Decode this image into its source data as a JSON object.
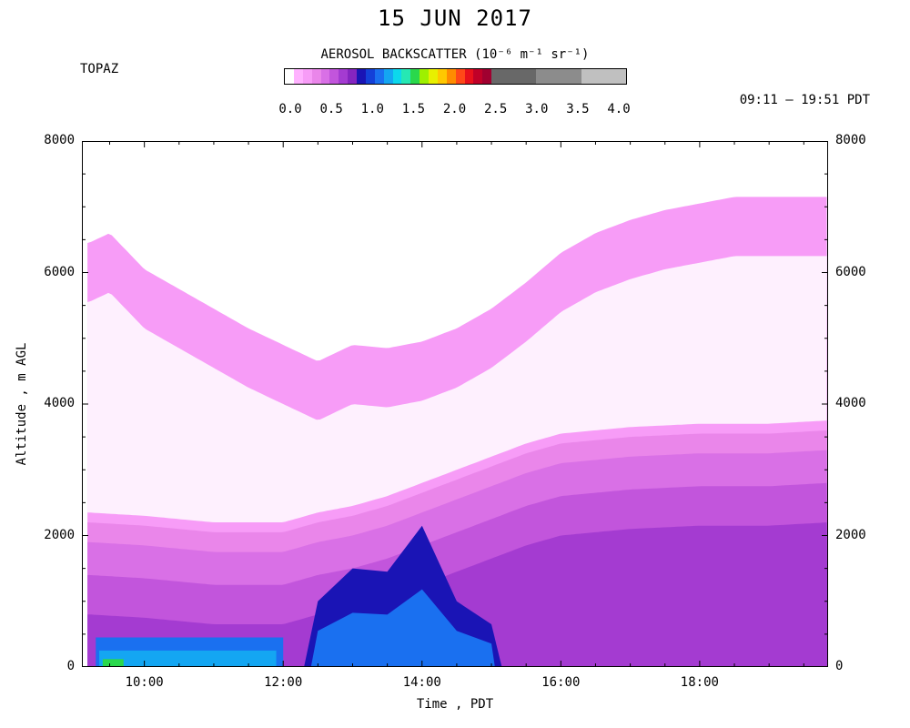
{
  "header": {
    "title": "15 JUN 2017",
    "site": "TOPAZ",
    "time_range": "09:11 – 19:51 PDT"
  },
  "colorbar": {
    "title": "AEROSOL BACKSCATTER (10⁻⁶ m⁻¹ sr⁻¹)",
    "ticks": [
      "0.0",
      "0.5",
      "1.0",
      "1.5",
      "2.0",
      "2.5",
      "3.0",
      "3.5",
      "4.0"
    ],
    "colors": [
      "#ffffff",
      "#ffb2ff",
      "#f79cf7",
      "#ea86ea",
      "#d970e6",
      "#c255dc",
      "#a43bd1",
      "#8525c0",
      "#1a14b5",
      "#1440d8",
      "#1a70f0",
      "#14a6f2",
      "#0cd8ec",
      "#26e8b4",
      "#2ad84c",
      "#9ef000",
      "#e8f000",
      "#ffc800",
      "#ff8c00",
      "#ff4818",
      "#e8101c",
      "#c00028",
      "#a00030",
      "#686868",
      "#8c8c8c",
      "#c0c0c0"
    ]
  },
  "chart_data": {
    "type": "heatmap",
    "title": "15 JUN 2017",
    "xlabel": "Time , PDT",
    "ylabel": "Altitude , m AGL",
    "x_ticks": [
      "10:00",
      "12:00",
      "14:00",
      "16:00",
      "18:00"
    ],
    "x_tick_hours": [
      10,
      12,
      14,
      16,
      18
    ],
    "xlim_hours": [
      9.1,
      19.85
    ],
    "data_start_hour": 9.18,
    "data_end_hour": 19.85,
    "y_ticks": [
      "0",
      "2000",
      "4000",
      "6000",
      "8000"
    ],
    "y_tick_values": [
      0,
      2000,
      4000,
      6000,
      8000
    ],
    "ylim": [
      0,
      8000
    ],
    "value_range": [
      0.0,
      4.0
    ],
    "units": "10^-6 m^-1 sr^-1",
    "data_top_altitude": [
      {
        "hour": 9.2,
        "alt": 6450
      },
      {
        "hour": 9.5,
        "alt": 6600
      },
      {
        "hour": 10.0,
        "alt": 6050
      },
      {
        "hour": 10.5,
        "alt": 5750
      },
      {
        "hour": 11.0,
        "alt": 5450
      },
      {
        "hour": 11.5,
        "alt": 5150
      },
      {
        "hour": 12.0,
        "alt": 4900
      },
      {
        "hour": 12.5,
        "alt": 4650
      },
      {
        "hour": 13.0,
        "alt": 4900
      },
      {
        "hour": 13.5,
        "alt": 4850
      },
      {
        "hour": 14.0,
        "alt": 4950
      },
      {
        "hour": 14.5,
        "alt": 5150
      },
      {
        "hour": 15.0,
        "alt": 5450
      },
      {
        "hour": 15.5,
        "alt": 5850
      },
      {
        "hour": 16.0,
        "alt": 6300
      },
      {
        "hour": 16.5,
        "alt": 6600
      },
      {
        "hour": 17.0,
        "alt": 6800
      },
      {
        "hour": 17.5,
        "alt": 6950
      },
      {
        "hour": 18.0,
        "alt": 7050
      },
      {
        "hour": 18.5,
        "alt": 7150
      },
      {
        "hour": 19.0,
        "alt": 7150
      },
      {
        "hour": 19.5,
        "alt": 7150
      },
      {
        "hour": 19.85,
        "alt": 7150
      }
    ],
    "mixed_layer_top_altitude": [
      {
        "hour": 9.2,
        "alt": 2200
      },
      {
        "hour": 10.0,
        "alt": 2150
      },
      {
        "hour": 11.0,
        "alt": 2050
      },
      {
        "hour": 12.0,
        "alt": 2050
      },
      {
        "hour": 12.5,
        "alt": 2200
      },
      {
        "hour": 13.0,
        "alt": 2300
      },
      {
        "hour": 13.5,
        "alt": 2450
      },
      {
        "hour": 14.0,
        "alt": 2650
      },
      {
        "hour": 14.5,
        "alt": 2850
      },
      {
        "hour": 15.0,
        "alt": 3050
      },
      {
        "hour": 15.5,
        "alt": 3250
      },
      {
        "hour": 16.0,
        "alt": 3400
      },
      {
        "hour": 17.0,
        "alt": 3500
      },
      {
        "hour": 18.0,
        "alt": 3550
      },
      {
        "hour": 19.0,
        "alt": 3550
      },
      {
        "hour": 19.85,
        "alt": 3600
      }
    ],
    "near_surface_plume": [
      {
        "hour": 12.5,
        "top_alt": 1000,
        "value": 1.2
      },
      {
        "hour": 13.0,
        "top_alt": 1500,
        "value": 1.1
      },
      {
        "hour": 13.5,
        "top_alt": 1450,
        "value": 0.9
      },
      {
        "hour": 14.0,
        "top_alt": 2150,
        "value": 1.1
      },
      {
        "hour": 14.5,
        "top_alt": 1000,
        "value": 0.8
      },
      {
        "hour": 15.0,
        "top_alt": 650,
        "value": 0.7
      }
    ]
  }
}
